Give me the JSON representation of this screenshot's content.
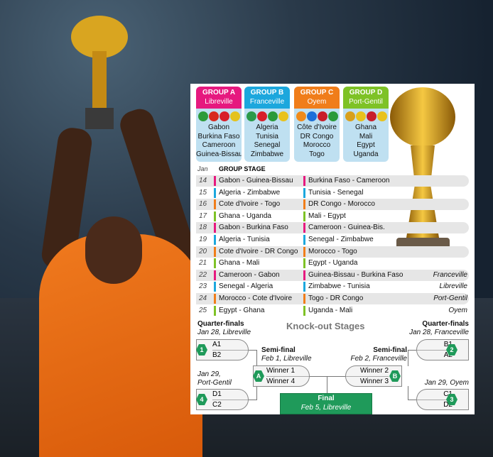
{
  "groups": [
    {
      "name": "GROUP A",
      "city": "Libreville",
      "color": "#e6197f",
      "flags": [
        "#2d9b3a",
        "#d82a20",
        "#d81e2a",
        "#e4c21c"
      ],
      "teams": [
        "Gabon",
        "Burkina Faso",
        "Cameroon",
        "Guinea-Bissau"
      ]
    },
    {
      "name": "GROUP B",
      "city": "Franceville",
      "color": "#1ca7dd",
      "flags": [
        "#2a9a4a",
        "#d81e2a",
        "#2a9a3a",
        "#e8c21c"
      ],
      "teams": [
        "Algeria",
        "Tunisia",
        "Senegal",
        "Zimbabwe"
      ]
    },
    {
      "name": "GROUP C",
      "city": "Oyem",
      "color": "#f07d1a",
      "flags": [
        "#f08a1a",
        "#1c6fd8",
        "#c81e2a",
        "#2a9a3a"
      ],
      "teams": [
        "Côte d'Ivoire",
        "DR Congo",
        "Morocco",
        "Togo"
      ]
    },
    {
      "name": "GROUP D",
      "city": "Port-Gentil",
      "color": "#7ec226",
      "flags": [
        "#d8a01c",
        "#e8c21c",
        "#c81e2a",
        "#e8c21c"
      ],
      "teams": [
        "Ghana",
        "Mali",
        "Egypt",
        "Uganda"
      ]
    }
  ],
  "schedule": {
    "month": "Jan",
    "title": "GROUP STAGE",
    "rows": [
      {
        "day": "14",
        "g": 0,
        "m1": "Gabon - Guinea-Bissau",
        "m2": "Burkina Faso - Cameroon",
        "venue": ""
      },
      {
        "day": "15",
        "g": 1,
        "m1": "Algeria - Zimbabwe",
        "m2": "Tunisia - Senegal",
        "venue": ""
      },
      {
        "day": "16",
        "g": 2,
        "m1": "Cote d'Ivoire - Togo",
        "m2": "DR Congo - Morocco",
        "venue": ""
      },
      {
        "day": "17",
        "g": 3,
        "m1": "Ghana - Uganda",
        "m2": "Mali - Egypt",
        "venue": ""
      },
      {
        "day": "18",
        "g": 0,
        "m1": "Gabon - Burkina Faso",
        "m2": "Cameroon - Guinea-Bis.",
        "venue": ""
      },
      {
        "day": "19",
        "g": 1,
        "m1": "Algeria - Tunisia",
        "m2": "Senegal - Zimbabwe",
        "venue": ""
      },
      {
        "day": "20",
        "g": 2,
        "m1": "Cote d'Ivoire - DR Congo",
        "m2": "Morocco - Togo",
        "venue": ""
      },
      {
        "day": "21",
        "g": 3,
        "m1": "Ghana - Mali",
        "m2": "Egypt - Uganda",
        "venue": ""
      },
      {
        "day": "22",
        "g": 0,
        "m1": "Cameroon - Gabon",
        "m2": "Guinea-Bissau - Burkina Faso",
        "venue": "Franceville"
      },
      {
        "day": "23",
        "g": 1,
        "m1": "Senegal - Algeria",
        "m2": "Zimbabwe - Tunisia",
        "venue": "Libreville"
      },
      {
        "day": "24",
        "g": 2,
        "m1": "Morocco - Cote d'Ivoire",
        "m2": "Togo - DR Congo",
        "venue": "Port-Gentil"
      },
      {
        "day": "25",
        "g": 3,
        "m1": "Egypt - Ghana",
        "m2": "Uganda - Mali",
        "venue": "Oyem"
      }
    ]
  },
  "knockout": {
    "title": "Knock-out Stages",
    "qf_label": "Quarter-finals",
    "qf1": {
      "date": "Jan 28, Libreville",
      "num": "1",
      "a": "A1",
      "b": "B2"
    },
    "qf2": {
      "date": "Jan 28, Franceville",
      "num": "2",
      "a": "B1",
      "b": "A2"
    },
    "qf4": {
      "date1": "Jan 29,",
      "date2": "Port-Gentil",
      "num": "4",
      "a": "D1",
      "b": "C2"
    },
    "qf3": {
      "date": "Jan 29, Oyem",
      "num": "3",
      "a": "C1",
      "b": "D2"
    },
    "sf_label": "Semi-final",
    "sfA": {
      "date": "Feb 1, Libreville",
      "num": "A",
      "a": "Winner 1",
      "b": "Winner 4"
    },
    "sfB": {
      "date": "Feb 2, Franceville",
      "num": "B",
      "a": "Winner 2",
      "b": "Winner 3"
    },
    "final": {
      "label": "Final",
      "date": "Feb 5, Libreville",
      "color": "#1f9a5a"
    }
  }
}
